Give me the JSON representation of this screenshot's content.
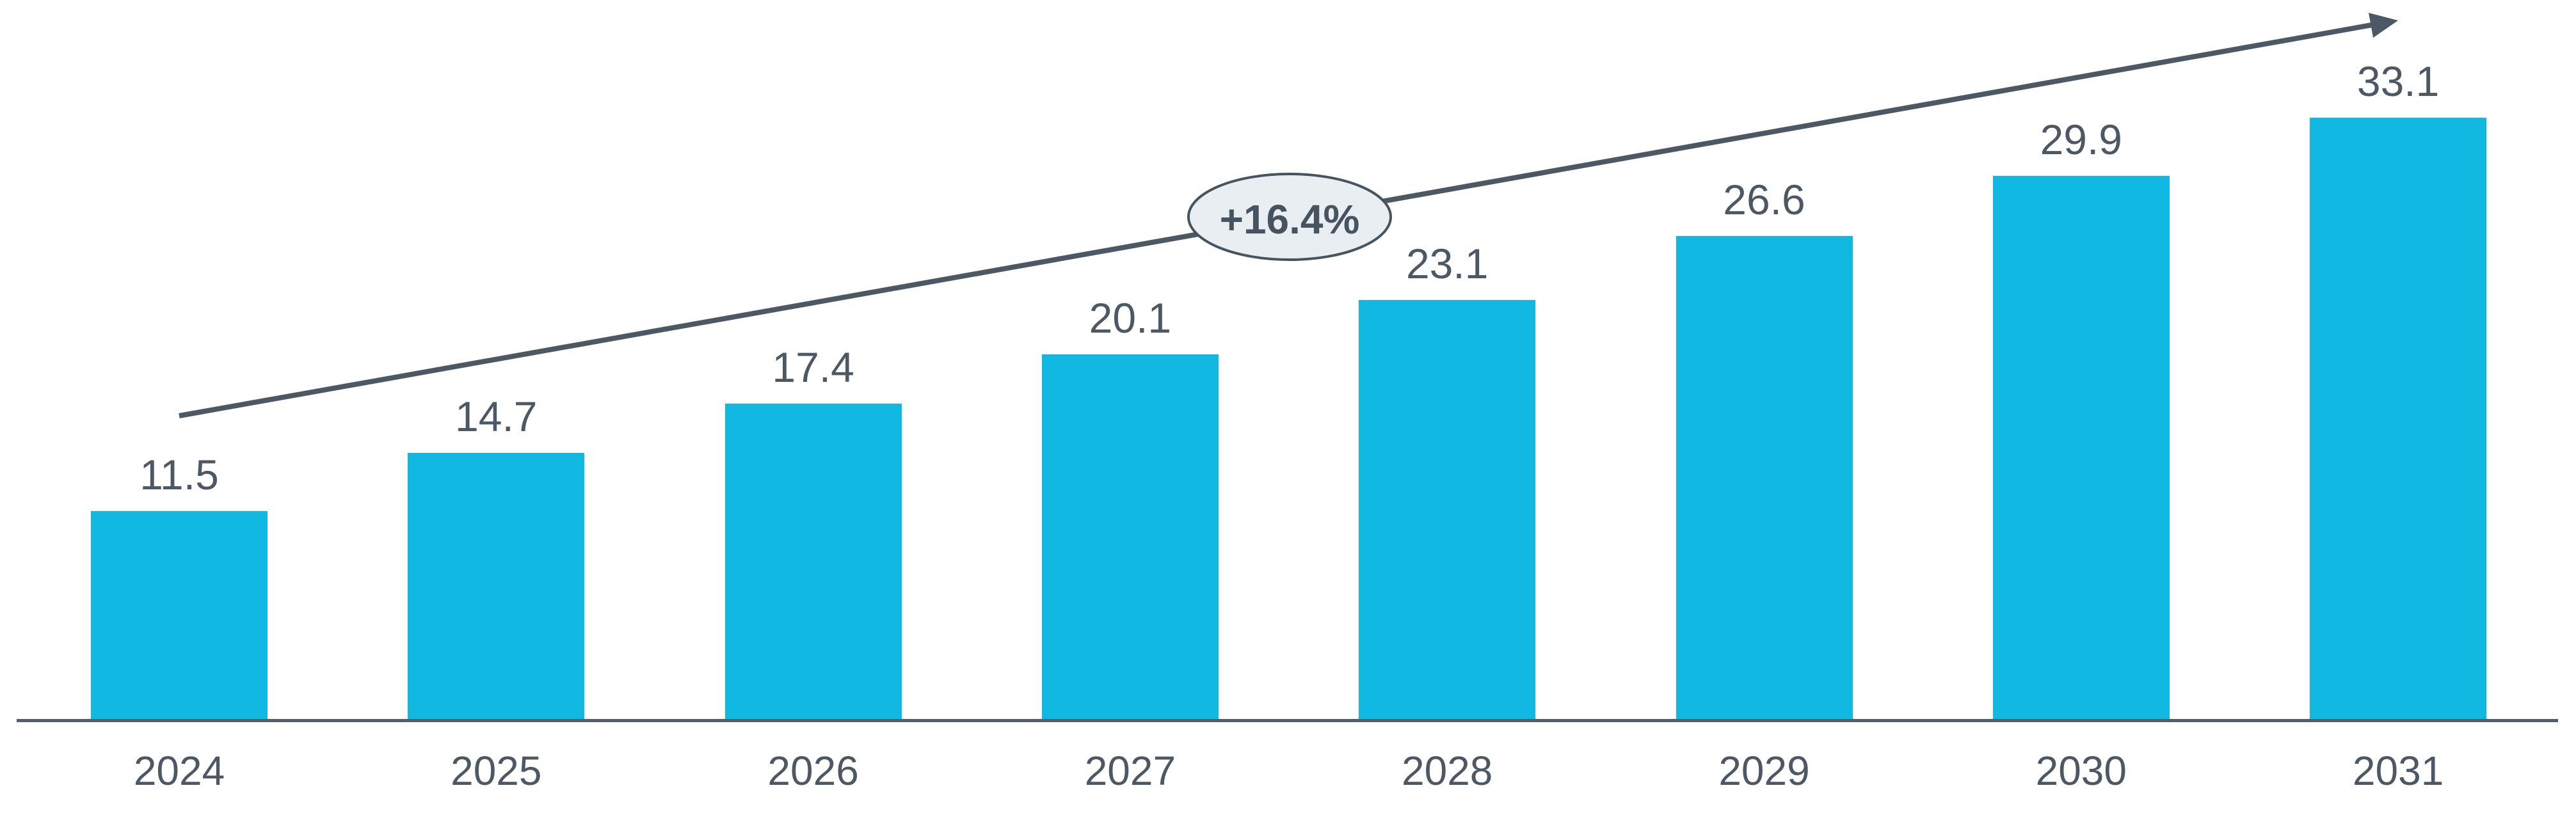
{
  "chart_data": {
    "type": "bar",
    "categories": [
      "2024",
      "2025",
      "2026",
      "2027",
      "2028",
      "2029",
      "2030",
      "2031"
    ],
    "values": [
      11.5,
      14.7,
      17.4,
      20.1,
      23.1,
      26.6,
      29.9,
      33.1
    ],
    "value_label_decimals": 1,
    "title": "",
    "xlabel": "",
    "ylabel": "",
    "ylim": [
      0,
      36
    ],
    "grid": false,
    "legend": false,
    "y_axis_visible": false,
    "annotation": {
      "label": "+16.4%",
      "shape": "ellipse-on-trend-arrow"
    },
    "colors": {
      "bar": "#10B8E2",
      "label_text": "#4C5964",
      "arrow": "#4C5964",
      "axis_line": "#555E68",
      "ellipse_fill": "#E9EEF3",
      "ellipse_stroke": "#47545F"
    }
  }
}
